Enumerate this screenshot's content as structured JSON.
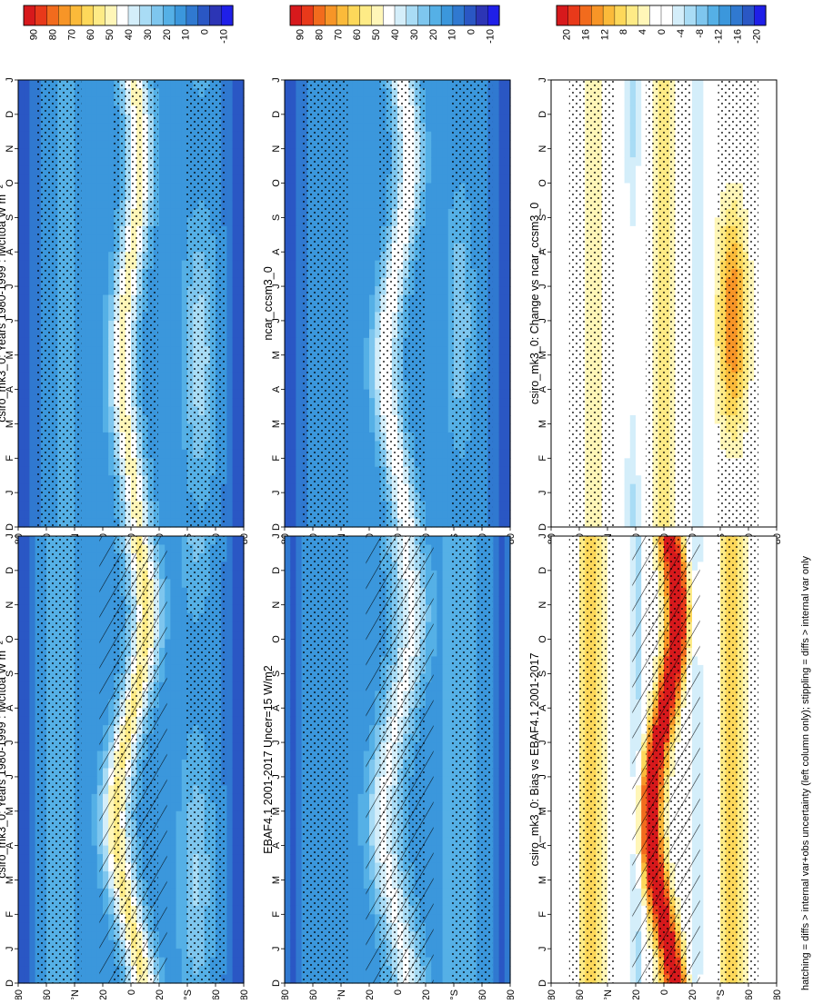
{
  "footnote": "hatching = diffs > internal var+obs uncertainty (left column only); stippling = diffs > internal var only",
  "colorbars": [
    {
      "id": "abs",
      "labels": [
        "90",
        "80",
        "70",
        "60",
        "50",
        "40",
        "30",
        "20",
        "10",
        "0",
        "-10"
      ],
      "colors": [
        "#d7191c",
        "#e8391a",
        "#f26b1d",
        "#f79527",
        "#fbba3a",
        "#fdd85a",
        "#feeb86",
        "#fff6b8",
        "#ffffff",
        "#d4eefa",
        "#a9dcf5",
        "#7ec6ee",
        "#55b0e6",
        "#3b97dc",
        "#3079d0",
        "#2a57c4",
        "#2c35b5",
        "#1f1fe8"
      ]
    },
    {
      "id": "diff",
      "labels": [
        "20",
        "16",
        "12",
        "8",
        "4",
        "0",
        "-4",
        "-8",
        "-12",
        "-16",
        "-20"
      ],
      "colors": [
        "#d7191c",
        "#e8391a",
        "#f26b1d",
        "#f79527",
        "#fbba3a",
        "#fdd85a",
        "#feeb86",
        "#fff6b8",
        "#ffffff",
        "#ffffff",
        "#d4eefa",
        "#a9dcf5",
        "#7ec6ee",
        "#55b0e6",
        "#3b97dc",
        "#3079d0",
        "#2a57c4",
        "#1f1fe8"
      ]
    }
  ],
  "chart_data": [
    {
      "type": "heatmap",
      "title": "csiro_mk3_0: Years 1980-1999 : lwcftoa W m⁻²",
      "months": [
        "J",
        "F",
        "M",
        "A",
        "M",
        "J",
        "J",
        "A",
        "S",
        "O",
        "N",
        "D",
        "J"
      ],
      "month_start": "D",
      "lat_ticks": [
        "80",
        "60",
        "°N",
        "20",
        "0",
        "20",
        "°S",
        "60",
        "80"
      ],
      "units": "W m-2",
      "range": [
        -10,
        90
      ]
    },
    {
      "type": "heatmap",
      "title": "csiro_mk3_0: Years 1980-1999 : lwcftoa W m⁻²",
      "months": [
        "J",
        "F",
        "M",
        "A",
        "M",
        "J",
        "J",
        "A",
        "S",
        "O",
        "N",
        "D",
        "J"
      ],
      "month_start": "D",
      "lat_ticks": [
        "80",
        "60",
        "°N",
        "20",
        "0",
        "20",
        "°S",
        "60",
        "80"
      ],
      "units": "W m-2",
      "range": [
        -10,
        90
      ]
    },
    {
      "type": "heatmap",
      "title": "EBAF4.1 2001-2017 Uncer=15 W/m2",
      "months": [
        "J",
        "F",
        "M",
        "A",
        "M",
        "J",
        "J",
        "A",
        "S",
        "O",
        "N",
        "D",
        "J"
      ],
      "month_start": "D",
      "lat_ticks": [
        "80",
        "60",
        "°N",
        "20",
        "0",
        "20",
        "°S",
        "60",
        "80"
      ],
      "units": "W m-2",
      "range": [
        -10,
        90
      ]
    },
    {
      "type": "heatmap",
      "title": "ncar_ccsm3_0",
      "months": [
        "J",
        "F",
        "M",
        "A",
        "M",
        "J",
        "J",
        "A",
        "S",
        "O",
        "N",
        "D",
        "J"
      ],
      "month_start": "D",
      "lat_ticks": [
        "80",
        "60",
        "°N",
        "20",
        "0",
        "20",
        "°S",
        "60",
        "80"
      ],
      "units": "W m-2",
      "range": [
        -10,
        90
      ]
    },
    {
      "type": "heatmap",
      "title": "csiro_mk3_0: Bias vs EBAF4.1 2001-2017",
      "months": [
        "J",
        "F",
        "M",
        "A",
        "M",
        "J",
        "J",
        "A",
        "S",
        "O",
        "N",
        "D",
        "J"
      ],
      "month_start": "D",
      "lat_ticks": [
        "80",
        "60",
        "°N",
        "20",
        "0",
        "20",
        "°S",
        "60",
        "80"
      ],
      "units": "W m-2",
      "range": [
        -20,
        20
      ]
    },
    {
      "type": "heatmap",
      "title": "csiro_mk3_0: Change vs ncar_ccsm3_0",
      "months": [
        "J",
        "F",
        "M",
        "A",
        "M",
        "J",
        "J",
        "A",
        "S",
        "O",
        "N",
        "D",
        "J"
      ],
      "month_start": "D",
      "lat_ticks": [
        "80",
        "60",
        "°N",
        "20",
        "0",
        "20",
        "°S",
        "60",
        "80"
      ],
      "units": "W m-2",
      "range": [
        -20,
        20
      ]
    }
  ]
}
